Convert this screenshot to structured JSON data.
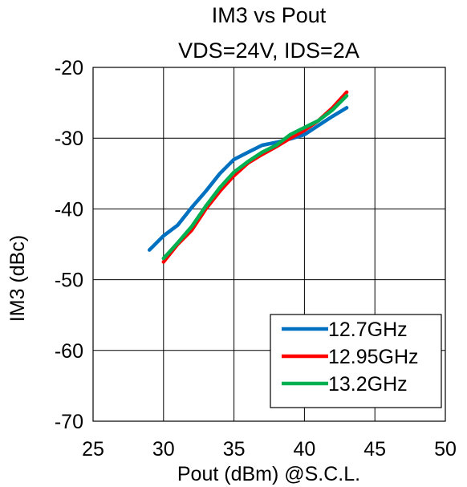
{
  "chart_data": {
    "type": "line",
    "title": "IM3 vs Pout",
    "subtitle": "VDS=24V, IDS=2A",
    "xlabel": "Pout (dBm) @S.C.L.",
    "ylabel": "IM3 (dBc)",
    "xlim": [
      25,
      50
    ],
    "ylim": [
      -70,
      -20
    ],
    "xticks": [
      25,
      30,
      35,
      40,
      45,
      50
    ],
    "yticks": [
      -70,
      -60,
      -50,
      -40,
      -30,
      -20
    ],
    "grid": true,
    "legend_position": "bottom-right",
    "series": [
      {
        "name": "12.7GHz",
        "color": "#0070C0",
        "x": [
          29,
          30,
          31,
          32,
          33,
          34,
          35,
          36,
          37,
          38,
          39,
          40,
          41,
          42,
          43
        ],
        "y": [
          -45.8,
          -43.8,
          -42.3,
          -39.8,
          -37.5,
          -35.0,
          -33.0,
          -32.0,
          -31.0,
          -30.6,
          -30.1,
          -29.5,
          -28.2,
          -26.9,
          -25.7
        ]
      },
      {
        "name": "12.95GHz",
        "color": "#FF0000",
        "x": [
          30,
          31,
          32,
          33,
          34,
          35,
          36,
          37,
          38,
          39,
          40,
          41,
          42,
          43
        ],
        "y": [
          -47.5,
          -45.0,
          -43.0,
          -40.0,
          -37.5,
          -35.3,
          -33.5,
          -32.3,
          -31.2,
          -30.0,
          -28.9,
          -27.5,
          -25.7,
          -23.5
        ]
      },
      {
        "name": "13.2GHz",
        "color": "#00B050",
        "x": [
          30,
          31,
          32,
          33,
          34,
          35,
          36,
          37,
          38,
          39,
          40,
          41,
          42,
          43
        ],
        "y": [
          -47.0,
          -44.8,
          -42.5,
          -39.6,
          -37.0,
          -34.8,
          -33.3,
          -32.0,
          -31.0,
          -29.5,
          -28.5,
          -27.5,
          -26.0,
          -24.0
        ]
      }
    ]
  }
}
